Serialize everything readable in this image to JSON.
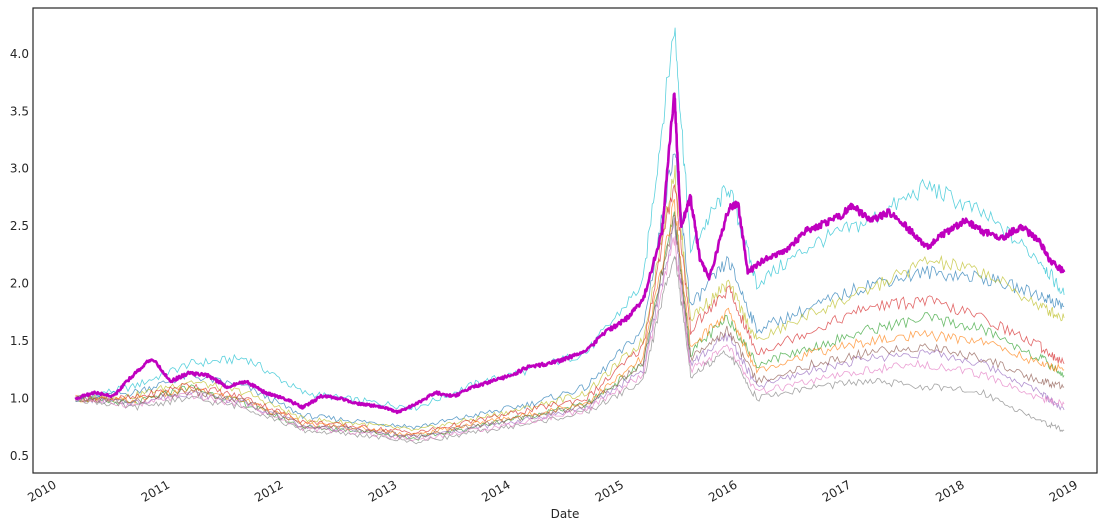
{
  "chart_data": {
    "type": "line",
    "title": "",
    "xlabel": "Date",
    "ylabel": "",
    "xlim": [
      "2009-10-15",
      "2019-03-01"
    ],
    "ylim": [
      0.35,
      4.4
    ],
    "grid": false,
    "x_ticks": [
      "2010",
      "2011",
      "2012",
      "2013",
      "2014",
      "2015",
      "2016",
      "2017",
      "2018",
      "2019"
    ],
    "y_ticks": [
      "0.5",
      "1.0",
      "1.5",
      "2.0",
      "2.5",
      "3.0",
      "3.5",
      "4.0"
    ],
    "highlight": {
      "color": "#bf00bf",
      "points": [
        [
          "2010-03-01",
          1.0
        ],
        [
          "2010-05-01",
          1.05
        ],
        [
          "2010-07-01",
          1.02
        ],
        [
          "2010-09-01",
          1.2
        ],
        [
          "2010-11-01",
          1.35
        ],
        [
          "2011-01-01",
          1.15
        ],
        [
          "2011-03-01",
          1.22
        ],
        [
          "2011-05-01",
          1.2
        ],
        [
          "2011-07-01",
          1.1
        ],
        [
          "2011-09-01",
          1.15
        ],
        [
          "2011-11-01",
          1.05
        ],
        [
          "2012-01-01",
          1.0
        ],
        [
          "2012-03-01",
          0.92
        ],
        [
          "2012-05-01",
          1.02
        ],
        [
          "2012-07-01",
          1.0
        ],
        [
          "2012-09-01",
          0.95
        ],
        [
          "2012-11-01",
          0.93
        ],
        [
          "2013-01-01",
          0.88
        ],
        [
          "2013-03-01",
          0.95
        ],
        [
          "2013-05-01",
          1.05
        ],
        [
          "2013-07-01",
          1.02
        ],
        [
          "2013-09-01",
          1.1
        ],
        [
          "2013-11-01",
          1.15
        ],
        [
          "2014-01-01",
          1.2
        ],
        [
          "2014-03-01",
          1.28
        ],
        [
          "2014-05-01",
          1.3
        ],
        [
          "2014-07-01",
          1.35
        ],
        [
          "2014-09-01",
          1.42
        ],
        [
          "2014-11-01",
          1.58
        ],
        [
          "2015-01-01",
          1.68
        ],
        [
          "2015-03-01",
          1.85
        ],
        [
          "2015-05-01",
          2.45
        ],
        [
          "2015-06-10",
          3.68
        ],
        [
          "2015-07-01",
          2.5
        ],
        [
          "2015-08-01",
          2.75
        ],
        [
          "2015-09-01",
          2.2
        ],
        [
          "2015-10-01",
          2.05
        ],
        [
          "2015-12-01",
          2.65
        ],
        [
          "2016-01-01",
          2.7
        ],
        [
          "2016-02-01",
          2.1
        ],
        [
          "2016-04-01",
          2.22
        ],
        [
          "2016-06-01",
          2.28
        ],
        [
          "2016-08-01",
          2.45
        ],
        [
          "2016-10-01",
          2.52
        ],
        [
          "2016-12-01",
          2.6
        ],
        [
          "2017-01-01",
          2.68
        ],
        [
          "2017-03-01",
          2.55
        ],
        [
          "2017-05-01",
          2.62
        ],
        [
          "2017-07-01",
          2.48
        ],
        [
          "2017-09-01",
          2.32
        ],
        [
          "2017-11-01",
          2.45
        ],
        [
          "2018-01-01",
          2.55
        ],
        [
          "2018-03-01",
          2.45
        ],
        [
          "2018-05-01",
          2.4
        ],
        [
          "2018-07-01",
          2.5
        ],
        [
          "2018-09-01",
          2.35
        ],
        [
          "2018-10-01",
          2.2
        ],
        [
          "2018-11-15",
          2.1
        ]
      ]
    },
    "series": [
      {
        "color": "#17becf",
        "points": [
          [
            "2010-03-01",
            1.0
          ],
          [
            "2010-09-01",
            1.1
          ],
          [
            "2011-03-01",
            1.3
          ],
          [
            "2011-09-01",
            1.35
          ],
          [
            "2012-03-01",
            1.05
          ],
          [
            "2012-09-01",
            0.98
          ],
          [
            "2013-03-01",
            0.92
          ],
          [
            "2013-09-01",
            1.12
          ],
          [
            "2014-03-01",
            1.25
          ],
          [
            "2014-09-01",
            1.4
          ],
          [
            "2015-03-01",
            2.0
          ],
          [
            "2015-06-10",
            4.25
          ],
          [
            "2015-08-01",
            2.3
          ],
          [
            "2015-12-01",
            2.85
          ],
          [
            "2016-03-01",
            2.0
          ],
          [
            "2016-09-01",
            2.35
          ],
          [
            "2017-03-01",
            2.55
          ],
          [
            "2017-09-01",
            2.85
          ],
          [
            "2018-03-01",
            2.6
          ],
          [
            "2018-09-01",
            2.2
          ],
          [
            "2018-11-15",
            1.9
          ]
        ]
      },
      {
        "color": "#1f77b4",
        "points": [
          [
            "2010-03-01",
            1.0
          ],
          [
            "2010-09-01",
            1.05
          ],
          [
            "2011-03-01",
            1.2
          ],
          [
            "2011-09-01",
            1.1
          ],
          [
            "2012-03-01",
            0.85
          ],
          [
            "2012-09-01",
            0.8
          ],
          [
            "2013-03-01",
            0.75
          ],
          [
            "2013-09-01",
            0.85
          ],
          [
            "2014-03-01",
            0.95
          ],
          [
            "2014-09-01",
            1.1
          ],
          [
            "2015-03-01",
            1.6
          ],
          [
            "2015-06-10",
            3.2
          ],
          [
            "2015-08-01",
            1.8
          ],
          [
            "2015-12-01",
            2.2
          ],
          [
            "2016-03-01",
            1.6
          ],
          [
            "2016-09-01",
            1.8
          ],
          [
            "2017-03-01",
            2.0
          ],
          [
            "2017-09-01",
            2.1
          ],
          [
            "2018-03-01",
            2.05
          ],
          [
            "2018-09-01",
            1.9
          ],
          [
            "2018-11-15",
            1.8
          ]
        ]
      },
      {
        "color": "#bcbd22",
        "points": [
          [
            "2010-03-01",
            1.0
          ],
          [
            "2010-09-01",
            1.02
          ],
          [
            "2011-03-01",
            1.15
          ],
          [
            "2011-09-01",
            1.05
          ],
          [
            "2012-03-01",
            0.82
          ],
          [
            "2012-09-01",
            0.78
          ],
          [
            "2013-03-01",
            0.72
          ],
          [
            "2013-09-01",
            0.82
          ],
          [
            "2014-03-01",
            0.92
          ],
          [
            "2014-09-01",
            1.05
          ],
          [
            "2015-03-01",
            1.5
          ],
          [
            "2015-06-10",
            3.0
          ],
          [
            "2015-08-01",
            1.7
          ],
          [
            "2015-12-01",
            2.0
          ],
          [
            "2016-03-01",
            1.5
          ],
          [
            "2016-09-01",
            1.75
          ],
          [
            "2017-03-01",
            1.95
          ],
          [
            "2017-09-01",
            2.2
          ],
          [
            "2018-03-01",
            2.1
          ],
          [
            "2018-09-01",
            1.8
          ],
          [
            "2018-11-15",
            1.7
          ]
        ]
      },
      {
        "color": "#d62728",
        "points": [
          [
            "2010-03-01",
            1.0
          ],
          [
            "2010-09-01",
            1.0
          ],
          [
            "2011-03-01",
            1.12
          ],
          [
            "2011-09-01",
            1.0
          ],
          [
            "2012-03-01",
            0.8
          ],
          [
            "2012-09-01",
            0.75
          ],
          [
            "2013-03-01",
            0.7
          ],
          [
            "2013-09-01",
            0.8
          ],
          [
            "2014-03-01",
            0.9
          ],
          [
            "2014-09-01",
            1.0
          ],
          [
            "2015-03-01",
            1.45
          ],
          [
            "2015-06-10",
            2.9
          ],
          [
            "2015-08-01",
            1.6
          ],
          [
            "2015-12-01",
            1.95
          ],
          [
            "2016-03-01",
            1.4
          ],
          [
            "2016-09-01",
            1.6
          ],
          [
            "2017-03-01",
            1.8
          ],
          [
            "2017-09-01",
            1.85
          ],
          [
            "2018-03-01",
            1.7
          ],
          [
            "2018-09-01",
            1.45
          ],
          [
            "2018-11-15",
            1.3
          ]
        ]
      },
      {
        "color": "#2ca02c",
        "points": [
          [
            "2010-03-01",
            1.0
          ],
          [
            "2010-09-01",
            0.95
          ],
          [
            "2011-03-01",
            1.1
          ],
          [
            "2011-09-01",
            0.95
          ],
          [
            "2012-03-01",
            0.75
          ],
          [
            "2012-09-01",
            0.72
          ],
          [
            "2013-03-01",
            0.65
          ],
          [
            "2013-09-01",
            0.75
          ],
          [
            "2014-03-01",
            0.85
          ],
          [
            "2014-09-01",
            0.95
          ],
          [
            "2015-03-01",
            1.3
          ],
          [
            "2015-06-10",
            2.6
          ],
          [
            "2015-08-01",
            1.4
          ],
          [
            "2015-12-01",
            1.7
          ],
          [
            "2016-03-01",
            1.3
          ],
          [
            "2016-09-01",
            1.45
          ],
          [
            "2017-03-01",
            1.6
          ],
          [
            "2017-09-01",
            1.7
          ],
          [
            "2018-03-01",
            1.6
          ],
          [
            "2018-09-01",
            1.35
          ],
          [
            "2018-11-15",
            1.2
          ]
        ]
      },
      {
        "color": "#ff7f0e",
        "points": [
          [
            "2010-03-01",
            1.0
          ],
          [
            "2010-09-01",
            0.98
          ],
          [
            "2011-03-01",
            1.08
          ],
          [
            "2011-09-01",
            0.98
          ],
          [
            "2012-03-01",
            0.78
          ],
          [
            "2012-09-01",
            0.74
          ],
          [
            "2013-03-01",
            0.68
          ],
          [
            "2013-09-01",
            0.78
          ],
          [
            "2014-03-01",
            0.86
          ],
          [
            "2014-09-01",
            0.96
          ],
          [
            "2015-03-01",
            1.35
          ],
          [
            "2015-06-10",
            2.7
          ],
          [
            "2015-08-01",
            1.45
          ],
          [
            "2015-12-01",
            1.75
          ],
          [
            "2016-03-01",
            1.25
          ],
          [
            "2016-09-01",
            1.4
          ],
          [
            "2017-03-01",
            1.5
          ],
          [
            "2017-09-01",
            1.55
          ],
          [
            "2018-03-01",
            1.5
          ],
          [
            "2018-09-01",
            1.3
          ],
          [
            "2018-11-15",
            1.25
          ]
        ]
      },
      {
        "color": "#9467bd",
        "points": [
          [
            "2010-03-01",
            1.0
          ],
          [
            "2010-09-01",
            0.96
          ],
          [
            "2011-03-01",
            1.05
          ],
          [
            "2011-09-01",
            0.96
          ],
          [
            "2012-03-01",
            0.76
          ],
          [
            "2012-09-01",
            0.72
          ],
          [
            "2013-03-01",
            0.66
          ],
          [
            "2013-09-01",
            0.74
          ],
          [
            "2014-03-01",
            0.82
          ],
          [
            "2014-09-01",
            0.92
          ],
          [
            "2015-03-01",
            1.25
          ],
          [
            "2015-06-10",
            2.5
          ],
          [
            "2015-08-01",
            1.3
          ],
          [
            "2015-12-01",
            1.55
          ],
          [
            "2016-03-01",
            1.1
          ],
          [
            "2016-09-01",
            1.25
          ],
          [
            "2017-03-01",
            1.35
          ],
          [
            "2017-09-01",
            1.4
          ],
          [
            "2018-03-01",
            1.3
          ],
          [
            "2018-09-01",
            1.05
          ],
          [
            "2018-11-15",
            0.9
          ]
        ]
      },
      {
        "color": "#7f7f7f",
        "points": [
          [
            "2010-03-01",
            1.0
          ],
          [
            "2010-09-01",
            0.92
          ],
          [
            "2011-03-01",
            1.0
          ],
          [
            "2011-09-01",
            0.92
          ],
          [
            "2012-03-01",
            0.72
          ],
          [
            "2012-09-01",
            0.68
          ],
          [
            "2013-03-01",
            0.62
          ],
          [
            "2013-09-01",
            0.7
          ],
          [
            "2014-03-01",
            0.78
          ],
          [
            "2014-09-01",
            0.88
          ],
          [
            "2015-03-01",
            1.15
          ],
          [
            "2015-06-10",
            2.3
          ],
          [
            "2015-08-01",
            1.2
          ],
          [
            "2015-12-01",
            1.4
          ],
          [
            "2016-03-01",
            1.0
          ],
          [
            "2016-09-01",
            1.1
          ],
          [
            "2017-03-01",
            1.15
          ],
          [
            "2017-09-01",
            1.1
          ],
          [
            "2018-03-01",
            1.05
          ],
          [
            "2018-09-01",
            0.8
          ],
          [
            "2018-11-15",
            0.72
          ]
        ]
      },
      {
        "color": "#e377c2",
        "points": [
          [
            "2010-03-01",
            1.0
          ],
          [
            "2010-09-01",
            0.94
          ],
          [
            "2011-03-01",
            1.03
          ],
          [
            "2011-09-01",
            0.94
          ],
          [
            "2012-03-01",
            0.74
          ],
          [
            "2012-09-01",
            0.7
          ],
          [
            "2013-03-01",
            0.64
          ],
          [
            "2013-09-01",
            0.72
          ],
          [
            "2014-03-01",
            0.8
          ],
          [
            "2014-09-01",
            0.9
          ],
          [
            "2015-03-01",
            1.2
          ],
          [
            "2015-06-10",
            2.4
          ],
          [
            "2015-08-01",
            1.25
          ],
          [
            "2015-12-01",
            1.45
          ],
          [
            "2016-03-01",
            1.05
          ],
          [
            "2016-09-01",
            1.15
          ],
          [
            "2017-03-01",
            1.25
          ],
          [
            "2017-09-01",
            1.3
          ],
          [
            "2018-03-01",
            1.2
          ],
          [
            "2018-09-01",
            1.0
          ],
          [
            "2018-11-15",
            0.95
          ]
        ]
      },
      {
        "color": "#8c564b",
        "points": [
          [
            "2010-03-01",
            1.0
          ],
          [
            "2010-09-01",
            0.97
          ],
          [
            "2011-03-01",
            1.06
          ],
          [
            "2011-09-01",
            0.97
          ],
          [
            "2012-03-01",
            0.77
          ],
          [
            "2012-09-01",
            0.73
          ],
          [
            "2013-03-01",
            0.67
          ],
          [
            "2013-09-01",
            0.76
          ],
          [
            "2014-03-01",
            0.84
          ],
          [
            "2014-09-01",
            0.94
          ],
          [
            "2015-03-01",
            1.3
          ],
          [
            "2015-06-10",
            2.6
          ],
          [
            "2015-08-01",
            1.35
          ],
          [
            "2015-12-01",
            1.6
          ],
          [
            "2016-03-01",
            1.15
          ],
          [
            "2016-09-01",
            1.3
          ],
          [
            "2017-03-01",
            1.4
          ],
          [
            "2017-09-01",
            1.45
          ],
          [
            "2018-03-01",
            1.35
          ],
          [
            "2018-09-01",
            1.15
          ],
          [
            "2018-11-15",
            1.1
          ]
        ]
      }
    ]
  }
}
